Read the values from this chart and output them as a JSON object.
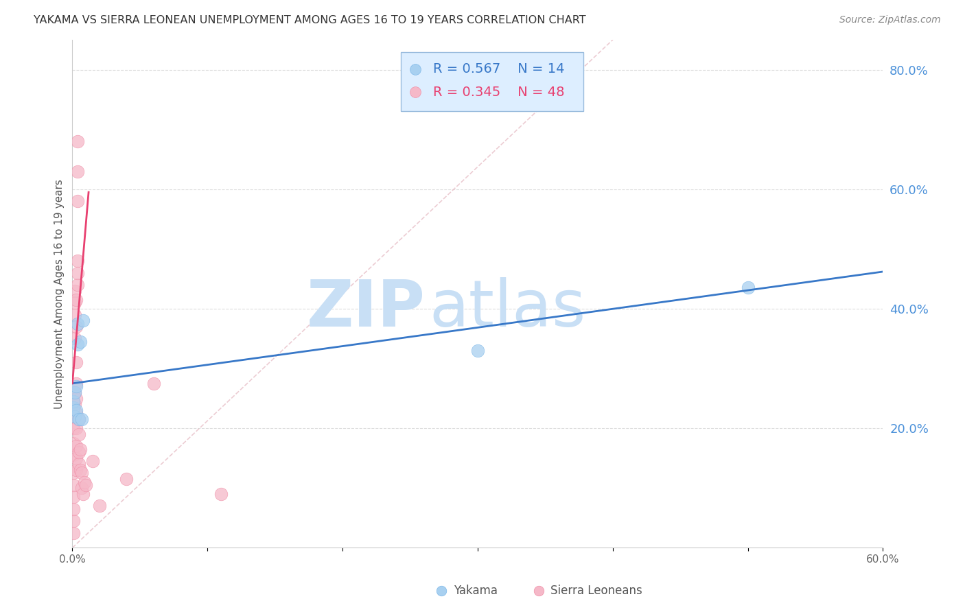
{
  "title": "YAKAMA VS SIERRA LEONEAN UNEMPLOYMENT AMONG AGES 16 TO 19 YEARS CORRELATION CHART",
  "source": "Source: ZipAtlas.com",
  "ylabel": "Unemployment Among Ages 16 to 19 years",
  "xlim": [
    0.0,
    0.6
  ],
  "ylim": [
    0.0,
    0.85
  ],
  "xticks": [
    0.0,
    0.1,
    0.2,
    0.3,
    0.4,
    0.5,
    0.6
  ],
  "xtick_labels": [
    "0.0%",
    "",
    "",
    "",
    "",
    "",
    "60.0%"
  ],
  "yticks_right": [
    0.2,
    0.4,
    0.6,
    0.8
  ],
  "yakama_x": [
    0.001,
    0.001,
    0.002,
    0.002,
    0.003,
    0.003,
    0.004,
    0.004,
    0.005,
    0.006,
    0.007,
    0.008,
    0.5,
    0.3
  ],
  "yakama_y": [
    0.235,
    0.245,
    0.22,
    0.26,
    0.23,
    0.27,
    0.34,
    0.375,
    0.215,
    0.345,
    0.215,
    0.38,
    0.435,
    0.33
  ],
  "sierra_x": [
    0.001,
    0.001,
    0.001,
    0.001,
    0.001,
    0.001,
    0.001,
    0.001,
    0.001,
    0.002,
    0.002,
    0.002,
    0.002,
    0.002,
    0.002,
    0.002,
    0.003,
    0.003,
    0.003,
    0.003,
    0.003,
    0.003,
    0.003,
    0.003,
    0.003,
    0.003,
    0.004,
    0.004,
    0.004,
    0.004,
    0.004,
    0.004,
    0.005,
    0.005,
    0.005,
    0.005,
    0.006,
    0.006,
    0.007,
    0.007,
    0.008,
    0.009,
    0.01,
    0.015,
    0.02,
    0.04,
    0.06,
    0.11
  ],
  "sierra_y": [
    0.025,
    0.045,
    0.065,
    0.085,
    0.105,
    0.125,
    0.155,
    0.175,
    0.2,
    0.22,
    0.24,
    0.26,
    0.35,
    0.39,
    0.41,
    0.43,
    0.13,
    0.15,
    0.17,
    0.2,
    0.225,
    0.25,
    0.275,
    0.31,
    0.37,
    0.415,
    0.44,
    0.48,
    0.58,
    0.63,
    0.68,
    0.46,
    0.14,
    0.16,
    0.19,
    0.215,
    0.13,
    0.165,
    0.1,
    0.125,
    0.09,
    0.11,
    0.105,
    0.145,
    0.07,
    0.115,
    0.275,
    0.09
  ],
  "yakama_color": "#a8d0f0",
  "sierra_color": "#f5b8c8",
  "yakama_edge_color": "#7eb8e8",
  "sierra_edge_color": "#f090a8",
  "yakama_trend_color": "#3878c8",
  "sierra_trend_color": "#e84070",
  "ref_line_color": "#e8c0c8",
  "title_color": "#333333",
  "right_axis_color": "#4a90d9",
  "watermark_zip_color": "#c8dff5",
  "watermark_atlas_color": "#c8dff5",
  "legend_box_facecolor": "#ddeeff",
  "legend_box_edgecolor": "#99bbdd",
  "yakama_R": 0.567,
  "yakama_N": 14,
  "sierra_R": 0.345,
  "sierra_N": 48,
  "yakama_trend_x": [
    0.0,
    0.6
  ],
  "yakama_trend_y": [
    0.275,
    0.462
  ],
  "sierra_trend_x": [
    0.0,
    0.012
  ],
  "sierra_trend_y": [
    0.275,
    0.595
  ]
}
